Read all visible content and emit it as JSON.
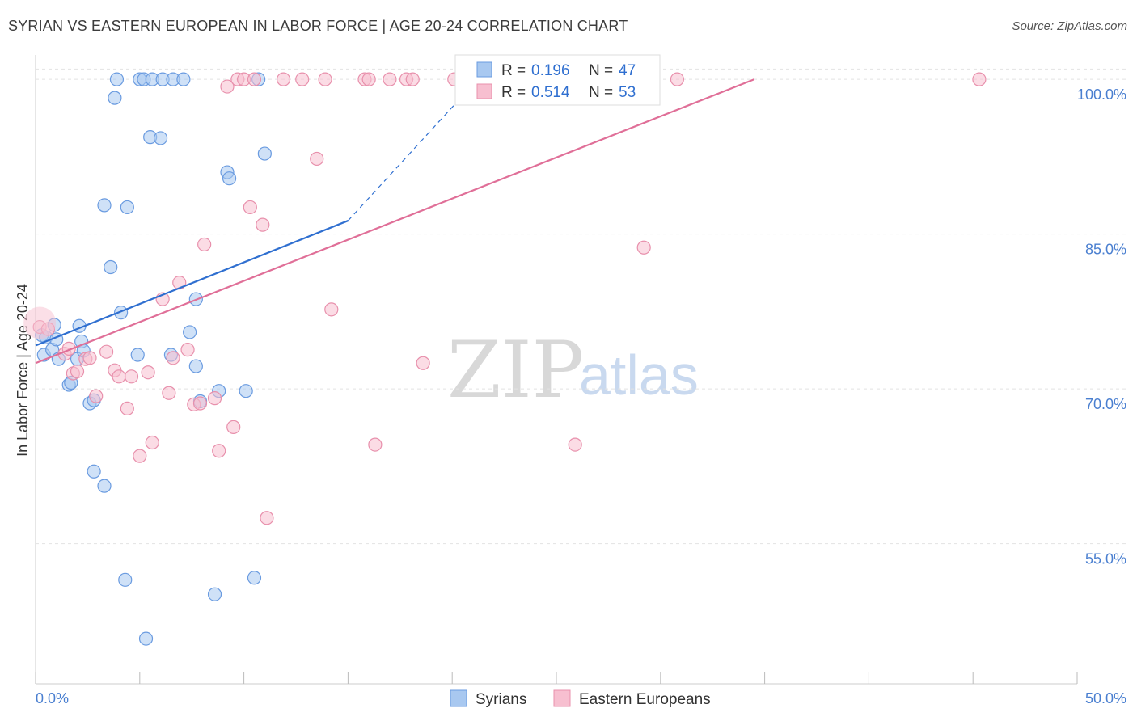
{
  "header": {
    "title": "SYRIAN VS EASTERN EUROPEAN IN LABOR FORCE | AGE 20-24 CORRELATION CHART",
    "source": "Source: ZipAtlas.com"
  },
  "watermark": {
    "zip": "ZIP",
    "atlas": "atlas"
  },
  "legend": {
    "r_label": "R =",
    "n_label": "N =",
    "rows": [
      {
        "name": "syrians",
        "r": "0.196",
        "n": "47",
        "color": "#a8c8f0",
        "stroke": "#6a9be0"
      },
      {
        "name": "eastern",
        "r": "0.514",
        "n": "53",
        "color": "#f7bfd0",
        "stroke": "#e890ac"
      }
    ]
  },
  "bottom_legend": {
    "syrians": "Syrians",
    "eastern": "Eastern Europeans"
  },
  "chart_data": {
    "type": "scatter",
    "title": "SYRIAN VS EASTERN EUROPEAN IN LABOR FORCE | AGE 20-24 CORRELATION CHART",
    "xlabel": "",
    "ylabel": "In Labor Force | Age 20-24",
    "xlim": [
      0,
      50
    ],
    "ylim": [
      41.5,
      101.5
    ],
    "x_tick_labels": [
      "0.0%",
      "50.0%"
    ],
    "y_ticks": [
      55,
      70,
      85,
      100
    ],
    "y_tick_labels": [
      "55.0%",
      "70.0%",
      "85.0%",
      "100.0%"
    ],
    "grid": true,
    "series": [
      {
        "name": "Syrians",
        "color": "#a8c8f0",
        "stroke": "#6a9be0",
        "line_color": "#2f6fd0",
        "trend": {
          "x0": 0,
          "y0": 74.2,
          "x1": 15,
          "y1": 86.3,
          "dash_to_x": 21,
          "dash_to_y": 99.5
        },
        "points": [
          [
            0.3,
            75.2
          ],
          [
            0.4,
            73.3
          ],
          [
            0.5,
            75.0
          ],
          [
            0.8,
            73.8
          ],
          [
            0.9,
            76.2
          ],
          [
            1.0,
            74.8
          ],
          [
            1.1,
            72.9
          ],
          [
            1.6,
            70.4
          ],
          [
            1.7,
            70.6
          ],
          [
            2.0,
            72.9
          ],
          [
            2.1,
            76.1
          ],
          [
            2.2,
            74.6
          ],
          [
            2.3,
            73.7
          ],
          [
            2.6,
            68.6
          ],
          [
            2.8,
            68.9
          ],
          [
            2.8,
            62.0
          ],
          [
            3.3,
            60.6
          ],
          [
            3.3,
            87.8
          ],
          [
            3.6,
            81.8
          ],
          [
            3.8,
            98.2
          ],
          [
            3.9,
            100
          ],
          [
            4.1,
            77.4
          ],
          [
            4.3,
            51.5
          ],
          [
            4.4,
            87.6
          ],
          [
            4.9,
            73.3
          ],
          [
            5.0,
            100
          ],
          [
            5.2,
            100
          ],
          [
            5.3,
            45.8
          ],
          [
            5.5,
            94.4
          ],
          [
            5.6,
            100
          ],
          [
            6.0,
            94.3
          ],
          [
            6.1,
            100
          ],
          [
            6.6,
            100
          ],
          [
            6.5,
            73.3
          ],
          [
            7.1,
            100
          ],
          [
            7.4,
            75.5
          ],
          [
            7.7,
            72.2
          ],
          [
            7.7,
            78.7
          ],
          [
            7.9,
            68.8
          ],
          [
            8.6,
            50.1
          ],
          [
            8.8,
            69.8
          ],
          [
            9.2,
            91.0
          ],
          [
            9.3,
            90.4
          ],
          [
            10.1,
            69.8
          ],
          [
            10.5,
            51.7
          ],
          [
            10.7,
            100
          ],
          [
            11.0,
            92.8
          ]
        ]
      },
      {
        "name": "Eastern Europeans",
        "color": "#f7bfd0",
        "stroke": "#e890ac",
        "line_color": "#e06f98",
        "trend": {
          "x0": 0,
          "y0": 72.5,
          "x1": 34.5,
          "y1": 100
        },
        "points": [
          [
            0.2,
            76.0
          ],
          [
            0.6,
            75.8
          ],
          [
            1.4,
            73.4
          ],
          [
            1.6,
            73.9
          ],
          [
            1.8,
            71.5
          ],
          [
            2.0,
            71.7
          ],
          [
            2.4,
            72.9
          ],
          [
            2.6,
            73.0
          ],
          [
            2.9,
            69.3
          ],
          [
            3.4,
            73.6
          ],
          [
            3.8,
            71.8
          ],
          [
            4.0,
            71.2
          ],
          [
            4.4,
            68.1
          ],
          [
            4.6,
            71.2
          ],
          [
            5.0,
            63.5
          ],
          [
            5.4,
            71.6
          ],
          [
            5.6,
            64.8
          ],
          [
            6.1,
            78.7
          ],
          [
            6.4,
            69.6
          ],
          [
            6.6,
            73.0
          ],
          [
            6.9,
            80.3
          ],
          [
            7.3,
            73.8
          ],
          [
            7.6,
            68.5
          ],
          [
            7.9,
            68.6
          ],
          [
            8.1,
            84.0
          ],
          [
            8.6,
            69.1
          ],
          [
            8.8,
            64.0
          ],
          [
            9.2,
            99.3
          ],
          [
            9.5,
            66.3
          ],
          [
            9.7,
            100
          ],
          [
            10.0,
            100
          ],
          [
            10.3,
            87.6
          ],
          [
            10.5,
            100
          ],
          [
            10.9,
            85.9
          ],
          [
            11.1,
            57.5
          ],
          [
            11.9,
            100
          ],
          [
            12.8,
            100
          ],
          [
            13.5,
            92.3
          ],
          [
            13.9,
            100
          ],
          [
            14.2,
            77.7
          ],
          [
            15.8,
            100
          ],
          [
            16.0,
            100
          ],
          [
            16.3,
            64.6
          ],
          [
            17.0,
            100
          ],
          [
            17.8,
            100
          ],
          [
            18.1,
            100
          ],
          [
            18.6,
            72.5
          ],
          [
            20.1,
            100
          ],
          [
            24.0,
            100
          ],
          [
            25.9,
            64.6
          ],
          [
            29.2,
            83.7
          ],
          [
            30.8,
            100
          ],
          [
            45.3,
            100
          ]
        ]
      }
    ]
  }
}
